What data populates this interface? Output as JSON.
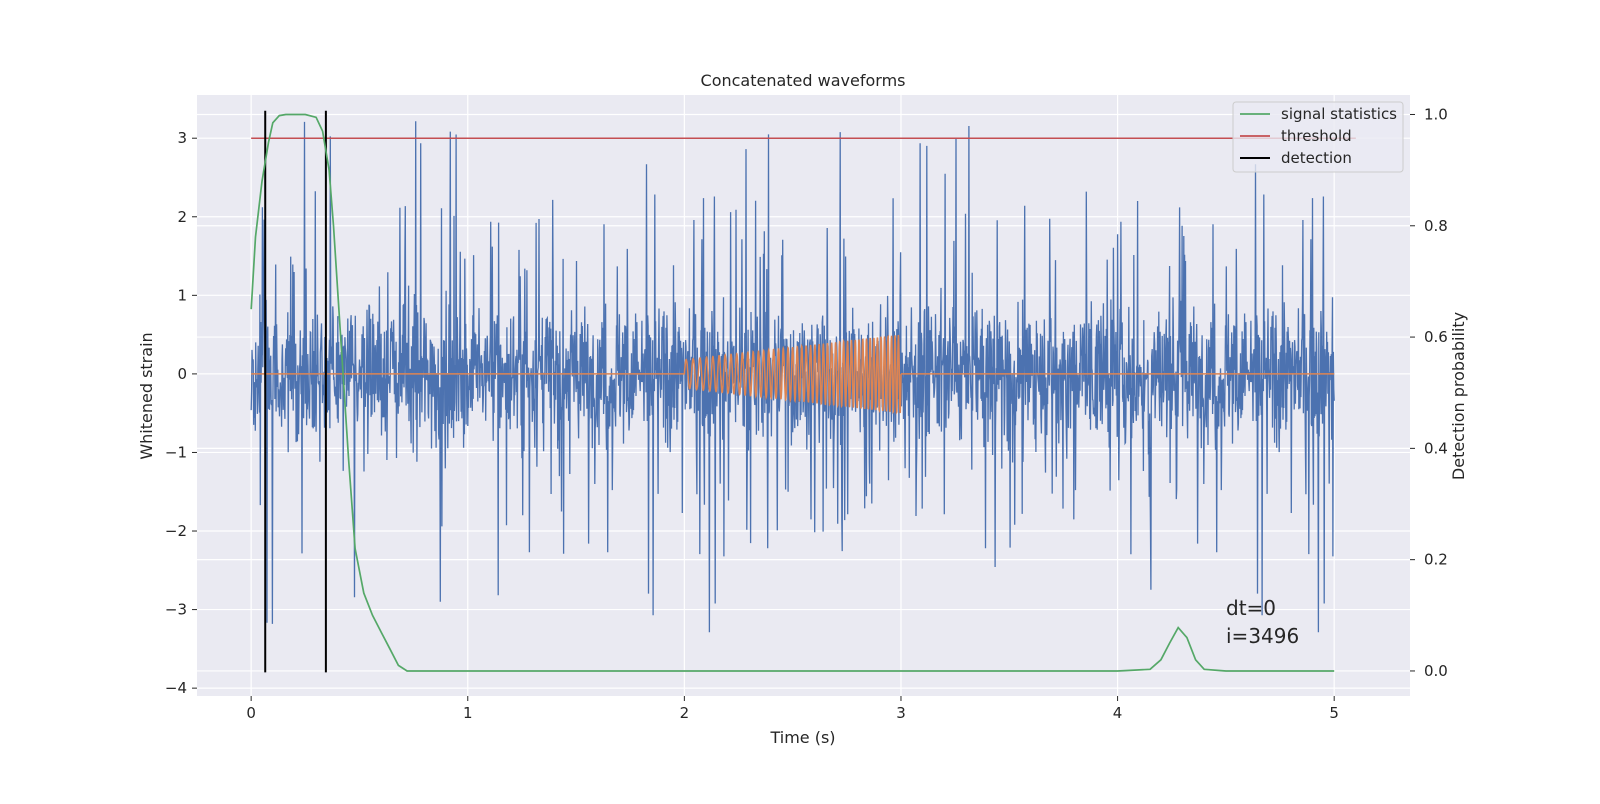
{
  "chart_data": {
    "type": "line",
    "title": "Concatenated waveforms",
    "xlabel": "Time (s)",
    "ylabel": "Whitened strain",
    "y2label": "Detection probability",
    "xlim": [
      -0.25,
      5.35
    ],
    "ylim": [
      -4.1,
      3.55
    ],
    "y2lim": [
      -0.045,
      1.035
    ],
    "xticks": [
      0,
      1,
      2,
      3,
      4,
      5
    ],
    "yticks": [
      -4,
      -3,
      -2,
      -1,
      0,
      1,
      2,
      3
    ],
    "y2ticks": [
      0.0,
      0.2,
      0.4,
      0.6,
      0.8,
      1.0
    ],
    "xtick_labels": [
      "0",
      "1",
      "2",
      "3",
      "4",
      "5"
    ],
    "ytick_labels": [
      "−4",
      "−3",
      "−2",
      "−1",
      "0",
      "1",
      "2",
      "3"
    ],
    "y2tick_labels": [
      "0.0",
      "0.2",
      "0.4",
      "0.6",
      "0.8",
      "1.0"
    ],
    "grid": true,
    "legend_position": "top-right",
    "noise": {
      "color": "#4c72b0",
      "x_range": [
        0,
        5
      ],
      "typical_envelope": [
        -1.0,
        1.0
      ],
      "peak_max": 3.3,
      "peak_min": -3.8
    },
    "injected_signal": {
      "color": "#dd8452",
      "start": 2.0,
      "end": 3.0,
      "amplitude_start": 0.18,
      "amplitude_end": 0.5,
      "baseline": 0.0
    },
    "series": [
      {
        "name": "signal statistics",
        "color": "#55a868",
        "axis": "right",
        "x": [
          0.0,
          0.02,
          0.05,
          0.08,
          0.1,
          0.13,
          0.16,
          0.2,
          0.25,
          0.3,
          0.33,
          0.36,
          0.38,
          0.4,
          0.42,
          0.45,
          0.48,
          0.52,
          0.56,
          0.6,
          0.64,
          0.68,
          0.72,
          0.8,
          1.0,
          2.0,
          3.0,
          4.0,
          4.15,
          4.2,
          4.24,
          4.28,
          4.32,
          4.36,
          4.4,
          4.5,
          5.0
        ],
        "y": [
          0.65,
          0.78,
          0.88,
          0.95,
          0.985,
          0.998,
          1.0,
          1.0,
          1.0,
          0.995,
          0.97,
          0.9,
          0.8,
          0.68,
          0.56,
          0.38,
          0.22,
          0.14,
          0.1,
          0.07,
          0.04,
          0.01,
          0.0,
          0.0,
          0.0,
          0.0,
          0.0,
          0.0,
          0.003,
          0.02,
          0.05,
          0.078,
          0.06,
          0.02,
          0.003,
          0.0,
          0.0
        ]
      },
      {
        "name": "threshold",
        "color": "#c44e52",
        "axis": "left",
        "x": [
          0.0,
          5.1
        ],
        "y": [
          3.0,
          3.0
        ]
      },
      {
        "name": "detection",
        "color": "#000000",
        "axis": "left",
        "x": [
          0.065,
          0.345
        ],
        "y_range": [
          -3.8,
          3.35
        ]
      }
    ],
    "annotations": [
      "dt=0",
      "i=3496"
    ]
  }
}
